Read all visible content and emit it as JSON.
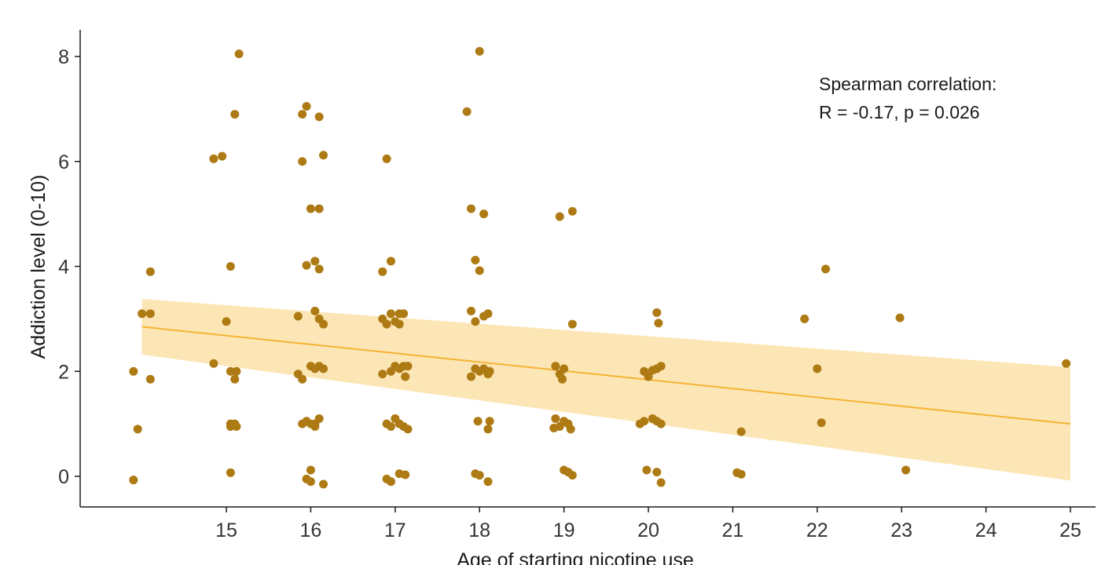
{
  "chart_data": {
    "type": "scatter",
    "xlabel": "Age of starting nicotine use",
    "ylabel": "Addiction level (0-10)",
    "x_ticks": [
      15,
      16,
      17,
      18,
      19,
      20,
      21,
      22,
      23,
      24,
      25
    ],
    "y_ticks": [
      0,
      2,
      4,
      6,
      8
    ],
    "xlim": [
      13.3,
      25.3
    ],
    "ylim": [
      -0.5,
      8.5
    ],
    "grid": false,
    "point_color": "#ae7a14",
    "fit_color": "#f5b335",
    "band_color": "#fde2a8",
    "annotation": {
      "line1": "Spearman correlation:",
      "line2": "R = -0.17, p = 0.026"
    },
    "regression": {
      "x": [
        14.0,
        25.0
      ],
      "y": [
        2.85,
        1.0
      ],
      "lower": [
        2.32,
        -0.08
      ],
      "upper": [
        3.38,
        2.08
      ]
    },
    "points": [
      {
        "x": 13.9,
        "y": 2.0
      },
      {
        "x": 13.9,
        "y": -0.07
      },
      {
        "x": 13.95,
        "y": 0.9
      },
      {
        "x": 14.0,
        "y": 3.1
      },
      {
        "x": 14.1,
        "y": 3.1
      },
      {
        "x": 14.1,
        "y": 3.9
      },
      {
        "x": 14.1,
        "y": 1.85
      },
      {
        "x": 14.85,
        "y": 6.05
      },
      {
        "x": 14.95,
        "y": 6.1
      },
      {
        "x": 14.85,
        "y": 2.15
      },
      {
        "x": 15.0,
        "y": 2.95
      },
      {
        "x": 15.05,
        "y": 4.0
      },
      {
        "x": 15.05,
        "y": 2.0
      },
      {
        "x": 15.1,
        "y": 1.85
      },
      {
        "x": 15.12,
        "y": 2.0
      },
      {
        "x": 15.05,
        "y": 1.0
      },
      {
        "x": 15.05,
        "y": 0.95
      },
      {
        "x": 15.12,
        "y": 0.95
      },
      {
        "x": 15.1,
        "y": 1.0
      },
      {
        "x": 15.05,
        "y": 0.07
      },
      {
        "x": 15.1,
        "y": 6.9
      },
      {
        "x": 15.15,
        "y": 8.05
      },
      {
        "x": 15.85,
        "y": 3.05
      },
      {
        "x": 15.85,
        "y": 1.95
      },
      {
        "x": 15.9,
        "y": 1.85
      },
      {
        "x": 15.9,
        "y": 6.0
      },
      {
        "x": 15.9,
        "y": 6.9
      },
      {
        "x": 15.95,
        "y": 7.05
      },
      {
        "x": 15.95,
        "y": 4.02
      },
      {
        "x": 16.0,
        "y": 5.1
      },
      {
        "x": 16.0,
        "y": 2.1
      },
      {
        "x": 16.0,
        "y": 1.0
      },
      {
        "x": 15.9,
        "y": 1.0
      },
      {
        "x": 15.95,
        "y": 1.05
      },
      {
        "x": 16.05,
        "y": 0.95
      },
      {
        "x": 16.1,
        "y": 1.1
      },
      {
        "x": 16.05,
        "y": 2.05
      },
      {
        "x": 16.1,
        "y": 2.1
      },
      {
        "x": 16.1,
        "y": 3.0
      },
      {
        "x": 16.15,
        "y": 2.9
      },
      {
        "x": 16.05,
        "y": 4.1
      },
      {
        "x": 16.1,
        "y": 3.95
      },
      {
        "x": 16.1,
        "y": 5.1
      },
      {
        "x": 16.1,
        "y": 6.85
      },
      {
        "x": 16.15,
        "y": 6.12
      },
      {
        "x": 16.05,
        "y": 3.15
      },
      {
        "x": 15.95,
        "y": -0.05
      },
      {
        "x": 16.0,
        "y": -0.1
      },
      {
        "x": 16.0,
        "y": 0.12
      },
      {
        "x": 16.15,
        "y": -0.15
      },
      {
        "x": 16.05,
        "y": 1.0
      },
      {
        "x": 16.15,
        "y": 2.05
      },
      {
        "x": 16.85,
        "y": 3.9
      },
      {
        "x": 16.9,
        "y": 6.05
      },
      {
        "x": 16.95,
        "y": 4.1
      },
      {
        "x": 16.85,
        "y": 3.0
      },
      {
        "x": 16.9,
        "y": 2.9
      },
      {
        "x": 16.95,
        "y": 3.1
      },
      {
        "x": 17.0,
        "y": 2.95
      },
      {
        "x": 17.05,
        "y": 3.1
      },
      {
        "x": 17.1,
        "y": 3.1
      },
      {
        "x": 17.05,
        "y": 2.9
      },
      {
        "x": 16.85,
        "y": 1.95
      },
      {
        "x": 16.95,
        "y": 2.0
      },
      {
        "x": 17.0,
        "y": 2.1
      },
      {
        "x": 17.05,
        "y": 2.05
      },
      {
        "x": 17.1,
        "y": 2.1
      },
      {
        "x": 17.15,
        "y": 2.1
      },
      {
        "x": 17.12,
        "y": 1.9
      },
      {
        "x": 16.9,
        "y": 1.0
      },
      {
        "x": 16.95,
        "y": 0.95
      },
      {
        "x": 17.0,
        "y": 1.1
      },
      {
        "x": 17.05,
        "y": 1.0
      },
      {
        "x": 17.1,
        "y": 0.95
      },
      {
        "x": 17.15,
        "y": 0.9
      },
      {
        "x": 16.9,
        "y": -0.05
      },
      {
        "x": 16.95,
        "y": -0.1
      },
      {
        "x": 17.05,
        "y": 0.05
      },
      {
        "x": 17.12,
        "y": 0.03
      },
      {
        "x": 17.85,
        "y": 6.95
      },
      {
        "x": 18.0,
        "y": 8.1
      },
      {
        "x": 17.9,
        "y": 5.1
      },
      {
        "x": 18.05,
        "y": 5.0
      },
      {
        "x": 17.95,
        "y": 4.12
      },
      {
        "x": 18.0,
        "y": 3.92
      },
      {
        "x": 17.9,
        "y": 3.15
      },
      {
        "x": 17.95,
        "y": 2.95
      },
      {
        "x": 18.05,
        "y": 3.05
      },
      {
        "x": 18.1,
        "y": 3.1
      },
      {
        "x": 17.9,
        "y": 1.9
      },
      {
        "x": 17.95,
        "y": 2.05
      },
      {
        "x": 18.0,
        "y": 2.0
      },
      {
        "x": 18.05,
        "y": 2.05
      },
      {
        "x": 18.1,
        "y": 1.95
      },
      {
        "x": 18.12,
        "y": 2.0
      },
      {
        "x": 17.98,
        "y": 1.05
      },
      {
        "x": 18.1,
        "y": 0.9
      },
      {
        "x": 18.12,
        "y": 1.05
      },
      {
        "x": 17.95,
        "y": 0.05
      },
      {
        "x": 18.0,
        "y": 0.02
      },
      {
        "x": 18.1,
        "y": -0.1
      },
      {
        "x": 18.95,
        "y": 4.95
      },
      {
        "x": 19.1,
        "y": 5.05
      },
      {
        "x": 19.1,
        "y": 2.9
      },
      {
        "x": 18.9,
        "y": 2.1
      },
      {
        "x": 18.95,
        "y": 1.95
      },
      {
        "x": 19.0,
        "y": 2.05
      },
      {
        "x": 18.98,
        "y": 1.85
      },
      {
        "x": 18.9,
        "y": 1.1
      },
      {
        "x": 18.88,
        "y": 0.92
      },
      {
        "x": 18.95,
        "y": 0.95
      },
      {
        "x": 19.0,
        "y": 1.05
      },
      {
        "x": 19.05,
        "y": 1.0
      },
      {
        "x": 19.08,
        "y": 0.9
      },
      {
        "x": 19.0,
        "y": 0.12
      },
      {
        "x": 19.05,
        "y": 0.08
      },
      {
        "x": 19.1,
        "y": 0.02
      },
      {
        "x": 20.1,
        "y": 3.12
      },
      {
        "x": 20.12,
        "y": 2.92
      },
      {
        "x": 19.95,
        "y": 2.0
      },
      {
        "x": 20.0,
        "y": 1.9
      },
      {
        "x": 20.05,
        "y": 2.02
      },
      {
        "x": 20.1,
        "y": 2.05
      },
      {
        "x": 20.15,
        "y": 2.1
      },
      {
        "x": 19.9,
        "y": 1.0
      },
      {
        "x": 19.95,
        "y": 1.05
      },
      {
        "x": 20.05,
        "y": 1.1
      },
      {
        "x": 20.1,
        "y": 1.05
      },
      {
        "x": 20.15,
        "y": 1.0
      },
      {
        "x": 19.98,
        "y": 0.12
      },
      {
        "x": 20.1,
        "y": 0.08
      },
      {
        "x": 20.15,
        "y": -0.12
      },
      {
        "x": 21.1,
        "y": 0.85
      },
      {
        "x": 21.05,
        "y": 0.07
      },
      {
        "x": 21.1,
        "y": 0.04
      },
      {
        "x": 21.85,
        "y": 3.0
      },
      {
        "x": 22.0,
        "y": 2.05
      },
      {
        "x": 22.1,
        "y": 3.95
      },
      {
        "x": 22.05,
        "y": 1.02
      },
      {
        "x": 22.98,
        "y": 3.02
      },
      {
        "x": 23.05,
        "y": 0.12
      },
      {
        "x": 24.95,
        "y": 2.15
      }
    ]
  }
}
